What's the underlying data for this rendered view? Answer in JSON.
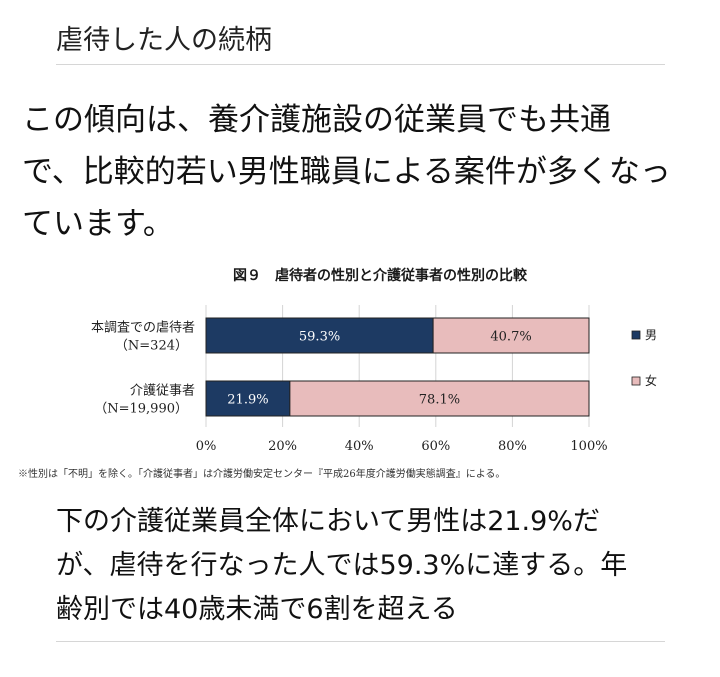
{
  "heading": "虐待した人の続柄",
  "paragraph1": [
    "この傾向は、養介護施設の従業員でも共通",
    "で、比較的若い男性職員による案件が多くなっ",
    "ています。"
  ],
  "paragraph2": [
    "下の介護従業員全体において男性は21.9%だ",
    "が、虐待を行なった人では59.3%に達する。年",
    "齢別では40歳未満で6割を超える"
  ],
  "chart_data": {
    "type": "bar",
    "orientation": "horizontal",
    "stacked": true,
    "percent_stacked": true,
    "title": "図９　虐待者の性別と介護従事者の性別の比較",
    "categories": [
      {
        "label": "本調査での虐待者",
        "sublabel": "（N=324）"
      },
      {
        "label": "介護従事者",
        "sublabel": "（N=19,990）"
      }
    ],
    "series": [
      {
        "name": "男",
        "color": "#1d3a63",
        "label_color": "#ffffff",
        "values": [
          59.3,
          21.9
        ],
        "labels": [
          "59.3%",
          "21.9%"
        ]
      },
      {
        "name": "女",
        "color": "#e8bcbc",
        "label_color": "#222222",
        "values": [
          40.7,
          78.1
        ],
        "labels": [
          "40.7%",
          "78.1%"
        ]
      }
    ],
    "xlim": [
      0,
      100
    ],
    "xticks": [
      "0%",
      "20%",
      "40%",
      "60%",
      "80%",
      "100%"
    ],
    "grid": true,
    "legend": "right",
    "note": "※性別は「不明」を除く。「介護従事者」は介護労働安定センター『平成26年度介護労働実態調査』による。"
  }
}
